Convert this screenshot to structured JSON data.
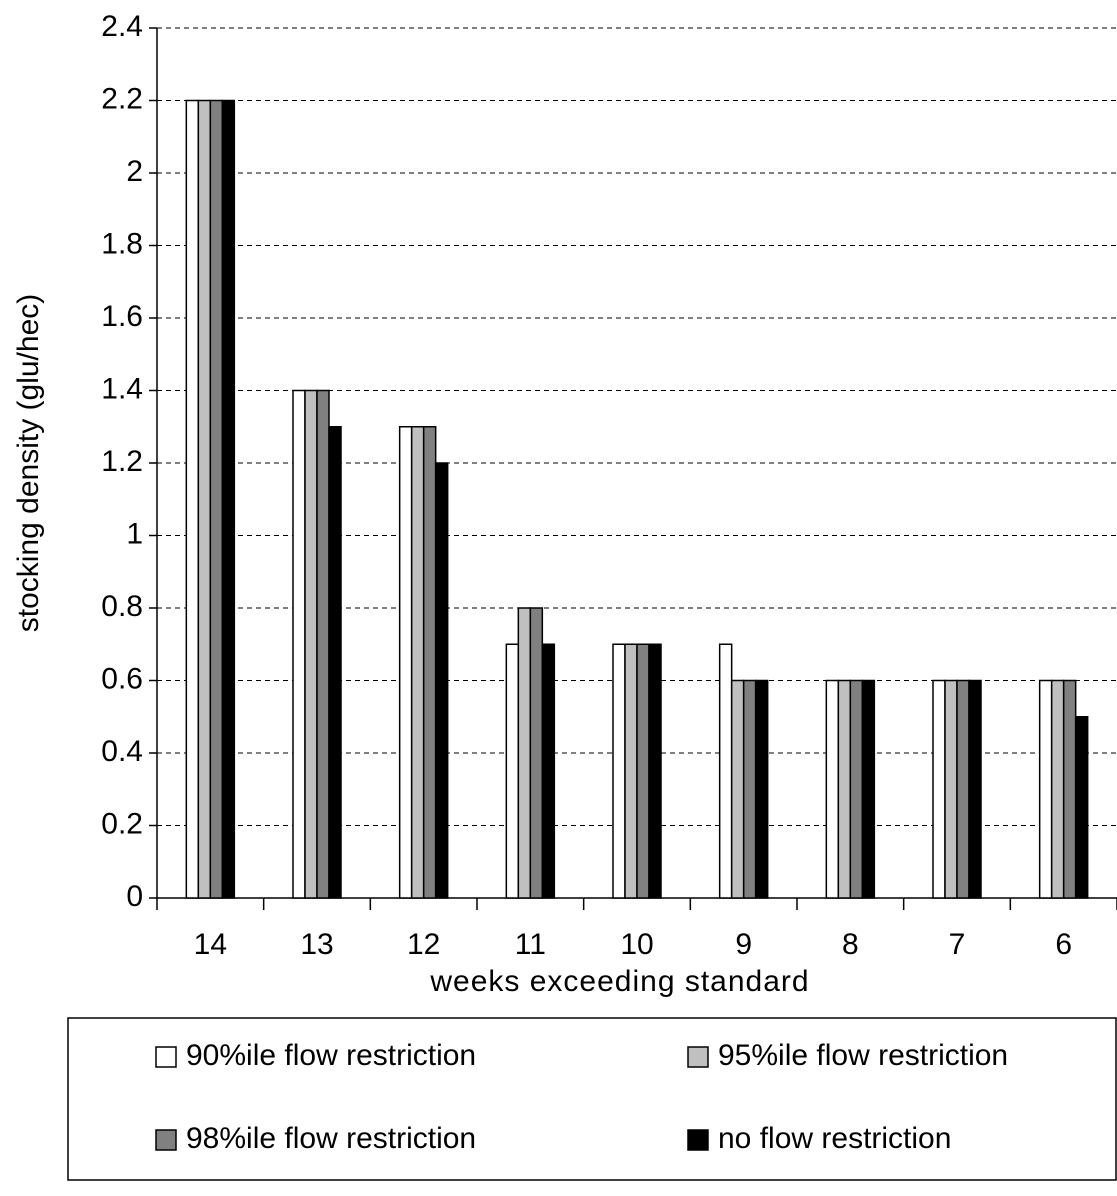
{
  "chart_data": {
    "type": "bar",
    "x_label": "weeks exceeding standard",
    "y_label": "stocking density (glu/hec)",
    "categories": [
      "14",
      "13",
      "12",
      "11",
      "10",
      "9",
      "8",
      "7",
      "6"
    ],
    "series": [
      {
        "name": "90%ile flow restriction",
        "color": "#ffffff",
        "values": [
          2.2,
          1.4,
          1.3,
          0.7,
          0.7,
          0.7,
          0.6,
          0.6,
          0.6
        ]
      },
      {
        "name": "95%ile flow restriction",
        "color": "#c0c0c0",
        "values": [
          2.2,
          1.4,
          1.3,
          0.8,
          0.7,
          0.6,
          0.6,
          0.6,
          0.6
        ]
      },
      {
        "name": "98%ile flow restriction",
        "color": "#808080",
        "values": [
          2.2,
          1.4,
          1.3,
          0.8,
          0.7,
          0.6,
          0.6,
          0.6,
          0.6
        ]
      },
      {
        "name": "no flow restriction",
        "color": "#000000",
        "values": [
          2.2,
          1.3,
          1.2,
          0.7,
          0.7,
          0.6,
          0.6,
          0.6,
          0.5
        ]
      }
    ],
    "ylim": [
      0,
      2.4
    ],
    "yticks": [
      0,
      0.2,
      0.4,
      0.6,
      0.8,
      1,
      1.2,
      1.4,
      1.6,
      1.8,
      2,
      2.2,
      2.4
    ],
    "grid": true
  }
}
